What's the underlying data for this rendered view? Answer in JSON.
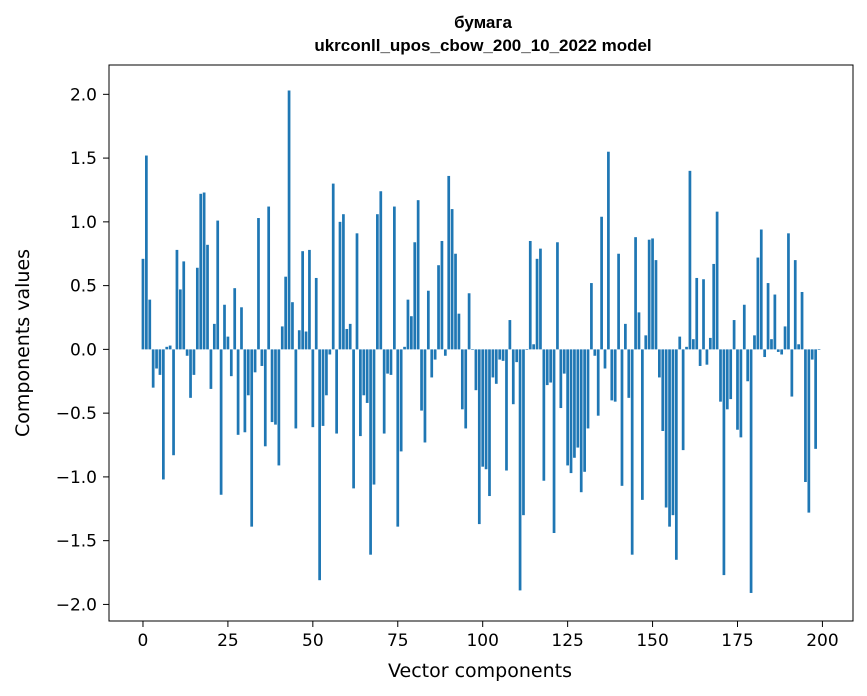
{
  "chart_data": {
    "type": "bar",
    "title": "бумага",
    "subtitle": "ukrconll_upos_cbow_200_10_2022 model",
    "xlabel": "Vector components",
    "ylabel": "Components values",
    "xlim": [
      -10,
      209
    ],
    "ylim": [
      -2.13,
      2.23
    ],
    "x_ticks": [
      0,
      25,
      50,
      75,
      100,
      125,
      150,
      175,
      200
    ],
    "x_tick_labels": [
      "0",
      "25",
      "50",
      "75",
      "100",
      "125",
      "150",
      "175",
      "200"
    ],
    "y_ticks": [
      2.0,
      1.5,
      1.0,
      0.5,
      0.0,
      -0.5,
      -1.0,
      -1.5,
      -2.0
    ],
    "y_tick_labels": [
      "2.0",
      "1.5",
      "1.0",
      "0.5",
      "0.0",
      "−0.5",
      "−1.0",
      "−1.5",
      "−2.0"
    ],
    "bar_color": "#1f77b4",
    "grid": false,
    "values": [
      0.71,
      1.52,
      0.39,
      -0.3,
      -0.15,
      -0.2,
      -1.02,
      0.02,
      0.03,
      -0.83,
      0.78,
      0.47,
      0.69,
      -0.05,
      -0.38,
      -0.2,
      0.64,
      1.22,
      1.23,
      0.82,
      -0.31,
      0.2,
      1.01,
      -1.14,
      0.35,
      0.1,
      -0.21,
      0.48,
      -0.67,
      0.33,
      -0.65,
      -0.36,
      -1.39,
      -0.18,
      1.03,
      -0.13,
      -0.76,
      1.12,
      -0.57,
      -0.59,
      -0.91,
      0.18,
      0.57,
      2.03,
      0.37,
      -0.62,
      0.15,
      0.77,
      0.14,
      0.78,
      -0.61,
      0.56,
      -1.81,
      -0.6,
      -0.36,
      -0.04,
      1.3,
      -0.66,
      1.0,
      1.06,
      0.16,
      0.2,
      -1.09,
      0.91,
      -0.68,
      -0.36,
      -0.42,
      -1.61,
      -1.06,
      1.06,
      1.24,
      -0.66,
      -0.19,
      -0.2,
      1.12,
      -1.39,
      -0.8,
      0.02,
      0.39,
      0.26,
      0.84,
      1.17,
      -0.48,
      -0.73,
      0.46,
      -0.22,
      -0.08,
      0.66,
      0.85,
      -0.05,
      1.36,
      1.1,
      0.75,
      0.28,
      -0.47,
      -0.62,
      0.44,
      0.0,
      -0.32,
      -1.37,
      -0.92,
      -0.94,
      -1.15,
      -0.22,
      -0.27,
      -0.08,
      -0.09,
      -0.95,
      0.23,
      -0.43,
      -0.1,
      -1.89,
      -1.3,
      0.0,
      0.85,
      0.04,
      0.71,
      0.79,
      -1.03,
      -0.28,
      -0.26,
      -1.44,
      0.84,
      -0.46,
      -0.19,
      -0.91,
      -0.97,
      -0.85,
      -0.77,
      -1.12,
      -0.96,
      -0.62,
      0.52,
      -0.05,
      -0.52,
      1.04,
      -0.15,
      1.55,
      -0.4,
      -0.41,
      0.75,
      -1.07,
      0.2,
      -0.38,
      -1.61,
      0.88,
      0.29,
      -1.18,
      0.11,
      0.86,
      0.87,
      0.7,
      -0.22,
      -0.64,
      -1.24,
      -1.39,
      -1.3,
      -1.65,
      0.1,
      -0.79,
      0.02,
      1.4,
      0.08,
      0.56,
      -0.13,
      0.55,
      -0.12,
      0.09,
      0.67,
      1.08,
      -0.41,
      -1.77,
      -0.47,
      -0.39,
      0.23,
      -0.63,
      -0.69,
      0.35,
      -0.25,
      -1.91,
      0.11,
      0.72,
      0.94,
      -0.06,
      0.52,
      0.08,
      0.43,
      -0.02,
      -0.04,
      0.18,
      0.91,
      -0.37,
      0.7,
      0.04,
      0.45,
      -1.04,
      -1.28,
      -0.08,
      -0.78,
      0.0
    ]
  }
}
